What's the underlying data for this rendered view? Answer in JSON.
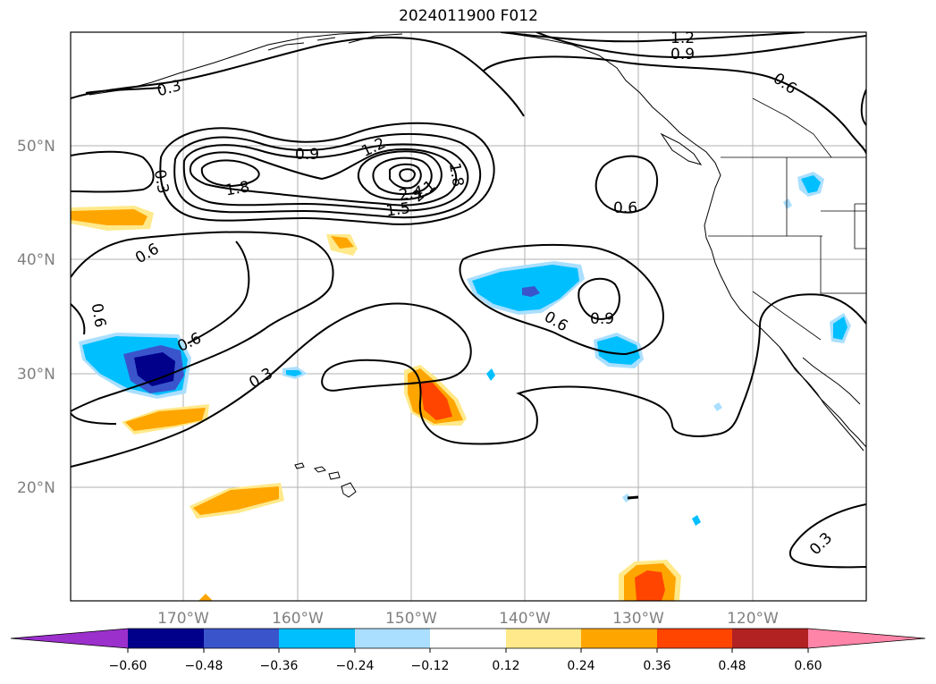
{
  "title": "2024011900 F012",
  "map": {
    "lat_labels": [
      "50°N",
      "40°N",
      "30°N",
      "20°N"
    ],
    "lon_labels": [
      "170°W",
      "160°W",
      "150°W",
      "140°W",
      "130°W",
      "120°W"
    ],
    "gridlines": true
  },
  "contours": {
    "line_color": "#000000",
    "labels": [
      "1.2",
      "0.9",
      "0.6",
      "0.3",
      "0.9",
      "1.2",
      "1.8",
      "0.3",
      "1.8",
      "2.4",
      "2.1",
      "1.5",
      "0.6",
      "0.6",
      "0.6",
      "0.6",
      "0.9",
      "0.6",
      "0.3",
      "0.3"
    ]
  },
  "colorbar": {
    "ticks": [
      "−0.60",
      "−0.48",
      "−0.36",
      "−0.24",
      "−0.12",
      "0.12",
      "0.24",
      "0.36",
      "0.48",
      "0.60"
    ],
    "colors": {
      "under": "#9b30cc",
      "c1": "#00008b",
      "c2": "#3a55cc",
      "c3": "#00bfff",
      "c4": "#aadfff",
      "c5": "#ffffff",
      "c6": "#ffe98a",
      "c7": "#ffa500",
      "c8": "#ff4500",
      "c9": "#b22222",
      "over": "#ff85a8"
    }
  }
}
